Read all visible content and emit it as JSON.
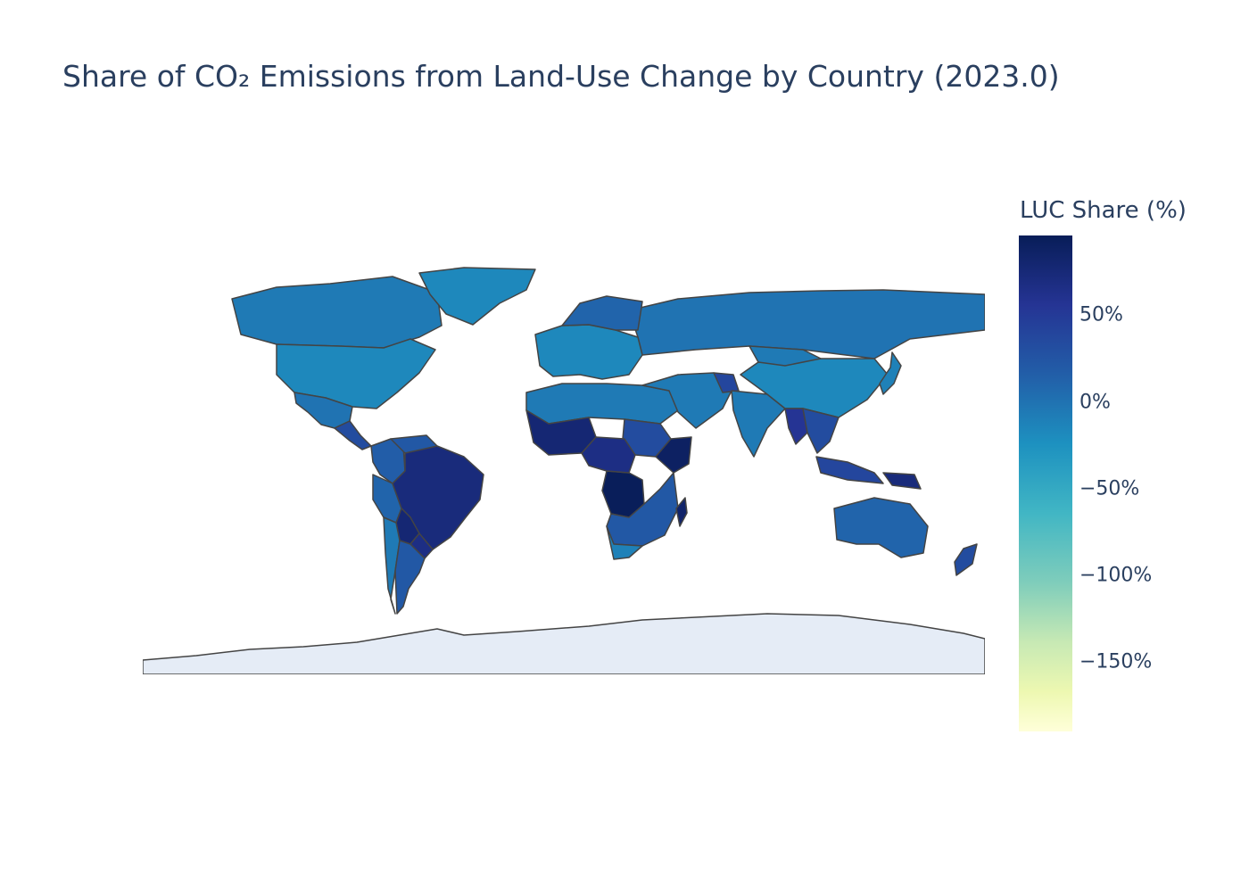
{
  "title": "Share of CO₂ Emissions from Land-Use Change by Country (2023.0)",
  "colorbar": {
    "title": "LUC Share (%)",
    "ticks": [
      "50%",
      "0%",
      "−50%",
      "−100%",
      "−150%"
    ],
    "tick_values": [
      50,
      0,
      -50,
      -100,
      -150
    ],
    "range": [
      -190,
      96
    ],
    "colorscale": [
      "#ffffd9",
      "#edf8b1",
      "#c7e9b4",
      "#7fcdbb",
      "#41b6c4",
      "#1d91c0",
      "#225ea8",
      "#253494",
      "#081d58"
    ]
  },
  "colors": {
    "antarctica": "#e5ecf6",
    "border": "#444444",
    "missing": "#e5ecf6"
  },
  "chart_data": {
    "type": "choropleth",
    "title": "Share of CO₂ Emissions from Land-Use Change by Country (2023.0)",
    "colorbar_title": "LUC Share (%)",
    "locations": [
      {
        "name": "Canada",
        "value": 5
      },
      {
        "name": "United States",
        "value": -5
      },
      {
        "name": "Greenland",
        "value": -5
      },
      {
        "name": "Mexico",
        "value": 10
      },
      {
        "name": "Central America",
        "value": 40
      },
      {
        "name": "Colombia",
        "value": 25
      },
      {
        "name": "Venezuela",
        "value": 30
      },
      {
        "name": "Peru",
        "value": 20
      },
      {
        "name": "Brazil",
        "value": 75
      },
      {
        "name": "Bolivia",
        "value": 80
      },
      {
        "name": "Paraguay",
        "value": 70
      },
      {
        "name": "Chile",
        "value": 5
      },
      {
        "name": "Argentina",
        "value": 30
      },
      {
        "name": "Russia",
        "value": 10
      },
      {
        "name": "Europe",
        "value": -5
      },
      {
        "name": "Scandinavia",
        "value": 20
      },
      {
        "name": "North Africa",
        "value": 5
      },
      {
        "name": "West Africa",
        "value": 80
      },
      {
        "name": "Sudan",
        "value": 40
      },
      {
        "name": "Ethiopia",
        "value": 90
      },
      {
        "name": "DR Congo",
        "value": 95
      },
      {
        "name": "Central Africa",
        "value": 70
      },
      {
        "name": "Southern Africa",
        "value": 30
      },
      {
        "name": "South Africa",
        "value": 0
      },
      {
        "name": "Madagascar",
        "value": 85
      },
      {
        "name": "Middle East",
        "value": 5
      },
      {
        "name": "Afghanistan",
        "value": 45
      },
      {
        "name": "India",
        "value": 5
      },
      {
        "name": "China",
        "value": -5
      },
      {
        "name": "Mongolia",
        "value": 5
      },
      {
        "name": "Myanmar",
        "value": 60
      },
      {
        "name": "Southeast Asia",
        "value": 40
      },
      {
        "name": "Indonesia",
        "value": 45
      },
      {
        "name": "Papua New Guinea",
        "value": 75
      },
      {
        "name": "Japan",
        "value": 0
      },
      {
        "name": "Australia",
        "value": 20
      },
      {
        "name": "New Zealand",
        "value": 40
      }
    ]
  }
}
